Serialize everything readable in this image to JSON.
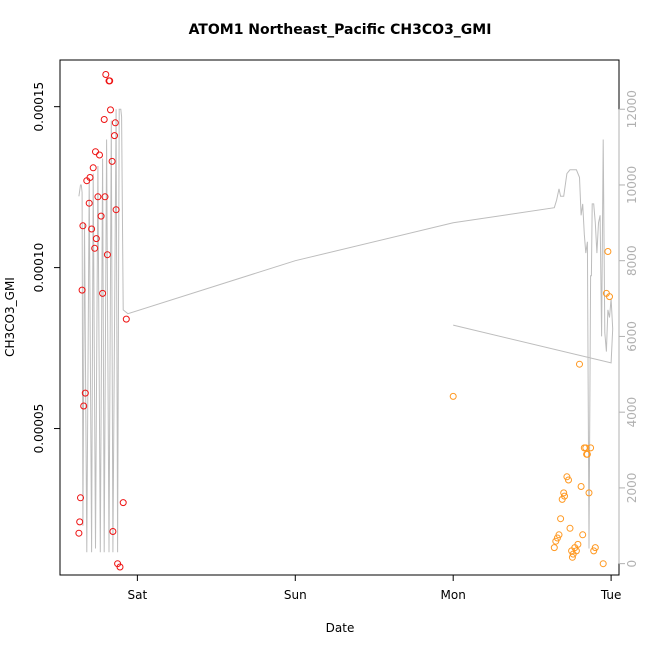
{
  "chart_data": {
    "type": "scatter",
    "title": "ATOM1 Northeast_Pacific CH3CO3_GMI",
    "xlabel": "Date",
    "ylabel": "CH3CO3_GMI",
    "x_tick_labels": [
      "Sat",
      "Sun",
      "Mon",
      "Tue"
    ],
    "y_tick_labels": [
      "0.00005",
      "0.00010",
      "0.00015"
    ],
    "y2_tick_labels": [
      "0",
      "2000",
      "4000",
      "6000",
      "8000",
      "10000",
      "12000"
    ],
    "xlim_days": [
      -0.49,
      3.05
    ],
    "ylim": [
      4.5e-06,
      0.0001645
    ],
    "y2lim": [
      -300,
      13300
    ],
    "grid": false,
    "colors": {
      "series1": "#ee1111",
      "series2": "#ff9922",
      "altitude": "#bdbdbd"
    },
    "series": [
      {
        "color_key": "series1",
        "points": [
          [
            -0.37,
            1.75e-05
          ],
          [
            -0.365,
            2.1e-05
          ],
          [
            -0.36,
            2.85e-05
          ],
          [
            -0.35,
            9.3e-05
          ],
          [
            -0.345,
            0.000113
          ],
          [
            -0.34,
            5.7e-05
          ],
          [
            -0.33,
            6.1e-05
          ],
          [
            -0.32,
            0.000127
          ],
          [
            -0.305,
            0.00012
          ],
          [
            -0.3,
            0.000128
          ],
          [
            -0.29,
            0.000112
          ],
          [
            -0.28,
            0.000131
          ],
          [
            -0.27,
            0.000106
          ],
          [
            -0.265,
            0.000136
          ],
          [
            -0.26,
            0.000109
          ],
          [
            -0.25,
            0.000122
          ],
          [
            -0.24,
            0.000135
          ],
          [
            -0.23,
            0.000116
          ],
          [
            -0.22,
            9.2e-05
          ],
          [
            -0.21,
            0.000146
          ],
          [
            -0.205,
            0.000122
          ],
          [
            -0.2,
            0.00016
          ],
          [
            -0.19,
            0.000104
          ],
          [
            -0.18,
            0.000158
          ],
          [
            -0.175,
            0.000158
          ],
          [
            -0.17,
            0.000149
          ],
          [
            -0.16,
            0.000133
          ],
          [
            -0.155,
            1.8e-05
          ],
          [
            -0.145,
            0.000141
          ],
          [
            -0.14,
            0.000145
          ],
          [
            -0.135,
            0.000118
          ],
          [
            -0.125,
            8e-06
          ],
          [
            -0.11,
            7e-06
          ],
          [
            -0.09,
            2.7e-05
          ],
          [
            -0.07,
            8.4e-05
          ]
        ]
      },
      {
        "color_key": "series2",
        "points": [
          [
            2.0,
            6e-05
          ],
          [
            2.64,
            1.3e-05
          ],
          [
            2.65,
            1.5e-05
          ],
          [
            2.66,
            1.6e-05
          ],
          [
            2.67,
            1.7e-05
          ],
          [
            2.68,
            2.2e-05
          ],
          [
            2.69,
            2.8e-05
          ],
          [
            2.7,
            3e-05
          ],
          [
            2.705,
            2.9e-05
          ],
          [
            2.72,
            3.5e-05
          ],
          [
            2.73,
            3.4e-05
          ],
          [
            2.74,
            1.9e-05
          ],
          [
            2.75,
            1.2e-05
          ],
          [
            2.755,
            1e-05
          ],
          [
            2.76,
            1.1e-05
          ],
          [
            2.77,
            1.3e-05
          ],
          [
            2.78,
            1.2e-05
          ],
          [
            2.79,
            1.4e-05
          ],
          [
            2.8,
            7e-05
          ],
          [
            2.81,
            3.2e-05
          ],
          [
            2.82,
            1.7e-05
          ],
          [
            2.83,
            4.4e-05
          ],
          [
            2.84,
            4.4e-05
          ],
          [
            2.845,
            4.2e-05
          ],
          [
            2.85,
            4.2e-05
          ],
          [
            2.86,
            3e-05
          ],
          [
            2.87,
            4.4e-05
          ],
          [
            2.89,
            1.2e-05
          ],
          [
            2.9,
            1.3e-05
          ],
          [
            2.95,
            8e-06
          ],
          [
            2.97,
            9.2e-05
          ],
          [
            2.98,
            0.000105
          ],
          [
            2.99,
            9.1e-05
          ]
        ]
      }
    ],
    "altitude_trace": [
      [
        -0.37,
        9700
      ],
      [
        -0.36,
        10000
      ],
      [
        -0.355,
        10000
      ],
      [
        -0.35,
        9800
      ],
      [
        -0.345,
        1000
      ],
      [
        -0.335,
        9000
      ],
      [
        -0.32,
        300
      ],
      [
        -0.305,
        10100
      ],
      [
        -0.29,
        300
      ],
      [
        -0.28,
        10300
      ],
      [
        -0.265,
        400
      ],
      [
        -0.25,
        10500
      ],
      [
        -0.235,
        300
      ],
      [
        -0.22,
        10700
      ],
      [
        -0.21,
        300
      ],
      [
        -0.195,
        11200
      ],
      [
        -0.18,
        300
      ],
      [
        -0.165,
        11700
      ],
      [
        -0.155,
        300
      ],
      [
        -0.135,
        12000
      ],
      [
        -0.125,
        300
      ],
      [
        -0.115,
        12000
      ],
      [
        -0.105,
        12000
      ],
      [
        -0.1,
        11800
      ],
      [
        -0.09,
        6700
      ],
      [
        -0.06,
        6600
      ],
      [
        1.0,
        8000
      ],
      [
        2.0,
        9000
      ],
      [
        2.64,
        9400
      ],
      [
        2.655,
        9600
      ],
      [
        2.67,
        9900
      ],
      [
        2.68,
        9700
      ],
      [
        2.7,
        9700
      ],
      [
        2.72,
        10300
      ],
      [
        2.74,
        10400
      ],
      [
        2.78,
        10400
      ],
      [
        2.8,
        10200
      ],
      [
        2.81,
        9200
      ],
      [
        2.82,
        9500
      ],
      [
        2.83,
        8700
      ],
      [
        2.84,
        8200
      ],
      [
        2.85,
        8500
      ],
      [
        2.86,
        400
      ],
      [
        2.87,
        7600
      ],
      [
        2.875,
        7600
      ],
      [
        2.88,
        9500
      ],
      [
        2.89,
        9500
      ],
      [
        2.9,
        9000
      ],
      [
        2.91,
        8200
      ],
      [
        2.92,
        9000
      ],
      [
        2.93,
        9200
      ],
      [
        2.94,
        6000
      ],
      [
        2.95,
        11200
      ],
      [
        2.96,
        6100
      ],
      [
        2.97,
        5600
      ],
      [
        2.975,
        6200
      ],
      [
        2.98,
        6700
      ],
      [
        2.99,
        6500
      ],
      [
        3.0,
        7000
      ],
      [
        3.01,
        6200
      ],
      [
        3.0,
        5300
      ],
      [
        2.0,
        6300
      ]
    ]
  }
}
